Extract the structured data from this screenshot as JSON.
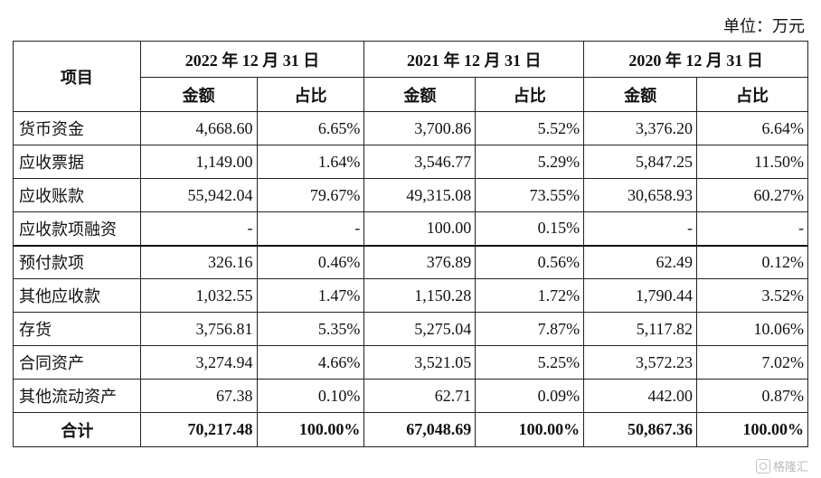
{
  "unit_label": "单位：万元",
  "header": {
    "item": "项目",
    "years": [
      "2022 年 12 月 31 日",
      "2021 年 12 月 31 日",
      "2020 年 12 月 31 日"
    ],
    "amount": "金额",
    "ratio": "占比"
  },
  "rows": [
    {
      "name": "货币资金",
      "values": [
        "4,668.60",
        "6.65%",
        "3,700.86",
        "5.52%",
        "3,376.20",
        "6.64%"
      ]
    },
    {
      "name": "应收票据",
      "values": [
        "1,149.00",
        "1.64%",
        "3,546.77",
        "5.29%",
        "5,847.25",
        "11.50%"
      ]
    },
    {
      "name": "应收账款",
      "values": [
        "55,942.04",
        "79.67%",
        "49,315.08",
        "73.55%",
        "30,658.93",
        "60.27%"
      ]
    },
    {
      "name": "应收款项融资",
      "values": [
        "-",
        "-",
        "100.00",
        "0.15%",
        "-",
        "-"
      ]
    },
    {
      "name": "预付款项",
      "values": [
        "326.16",
        "0.46%",
        "376.89",
        "0.56%",
        "62.49",
        "0.12%"
      ]
    },
    {
      "name": "其他应收款",
      "values": [
        "1,032.55",
        "1.47%",
        "1,150.28",
        "1.72%",
        "1,790.44",
        "3.52%"
      ]
    },
    {
      "name": "存货",
      "values": [
        "3,756.81",
        "5.35%",
        "5,275.04",
        "7.87%",
        "5,117.82",
        "10.06%"
      ]
    },
    {
      "name": "合同资产",
      "values": [
        "3,274.94",
        "4.66%",
        "3,521.05",
        "5.25%",
        "3,572.23",
        "7.02%"
      ]
    },
    {
      "name": "其他流动资产",
      "values": [
        "67.38",
        "0.10%",
        "62.71",
        "0.09%",
        "442.00",
        "0.87%"
      ]
    }
  ],
  "total": {
    "name": "合计",
    "values": [
      "70,217.48",
      "100.00%",
      "67,048.69",
      "100.00%",
      "50,867.36",
      "100.00%"
    ]
  },
  "watermark": "格隆汇"
}
